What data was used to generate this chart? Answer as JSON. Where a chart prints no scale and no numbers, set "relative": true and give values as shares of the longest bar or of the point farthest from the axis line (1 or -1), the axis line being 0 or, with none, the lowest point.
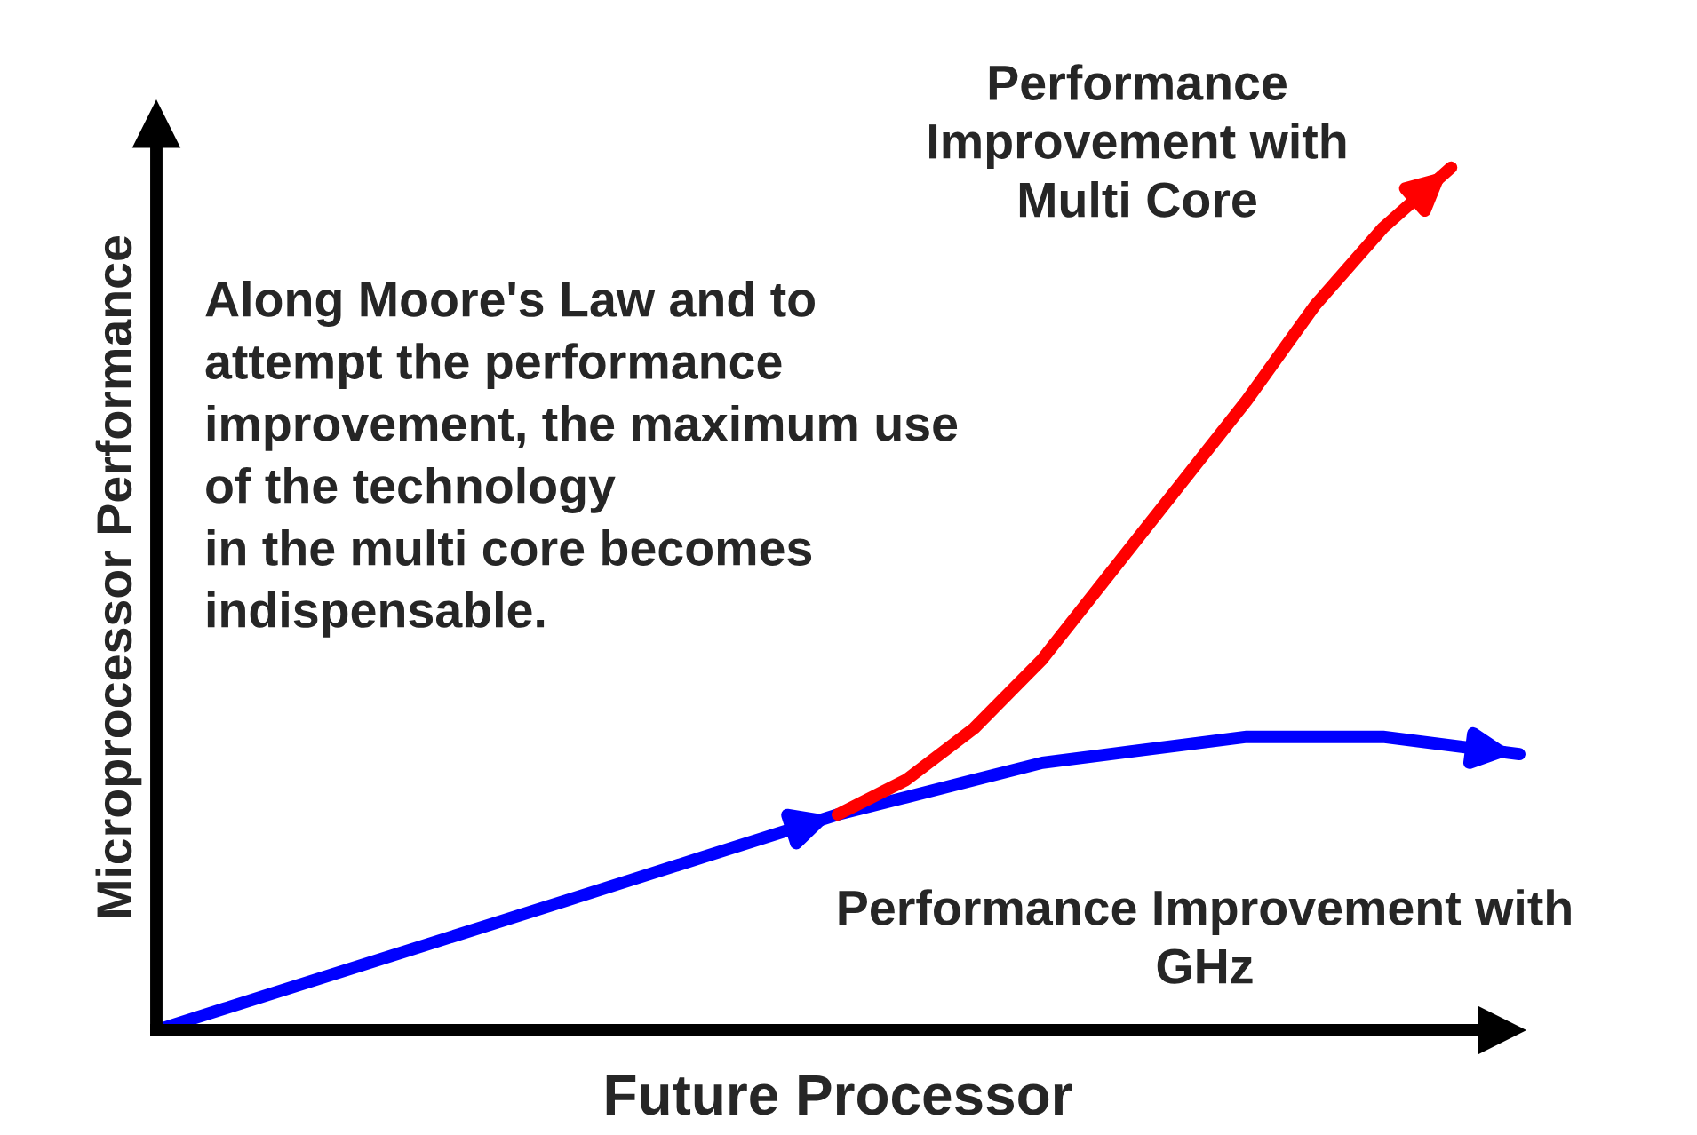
{
  "chart_data": {
    "type": "line",
    "relative": true,
    "xlabel": "Future Processor",
    "ylabel": "Microprocessor Performance",
    "categories": [
      null,
      null,
      null,
      null,
      null,
      null,
      null,
      null,
      null,
      null,
      null,
      null,
      null,
      null,
      null,
      null,
      null,
      null,
      null,
      null,
      null
    ],
    "series": [
      {
        "name": "Performance Improvement with\nGHz",
        "color": "#0000ff",
        "values": [
          0,
          0.025,
          0.05,
          0.075,
          0.1,
          0.125,
          0.15,
          0.175,
          0.2,
          0.225,
          0.25,
          0.27,
          0.29,
          0.31,
          0.32,
          0.33,
          0.34,
          0.34,
          0.34,
          0.33,
          0.32
        ]
      },
      {
        "name": "Performance\nImprovement with\nMulti Core",
        "color": "#ff0000",
        "values": [
          null,
          null,
          null,
          null,
          null,
          null,
          null,
          null,
          null,
          null,
          0.25,
          0.29,
          0.35,
          0.43,
          0.53,
          0.63,
          0.73,
          0.84,
          0.93,
          1.0,
          null
        ]
      }
    ],
    "annotations": [
      "Along Moore's Law and to\nattempt the performance\nimprovement, the maximum use\nof the technology\nin the multi core becomes\nindispensable."
    ],
    "grid": false,
    "marker": "none",
    "line_style": "solid"
  }
}
